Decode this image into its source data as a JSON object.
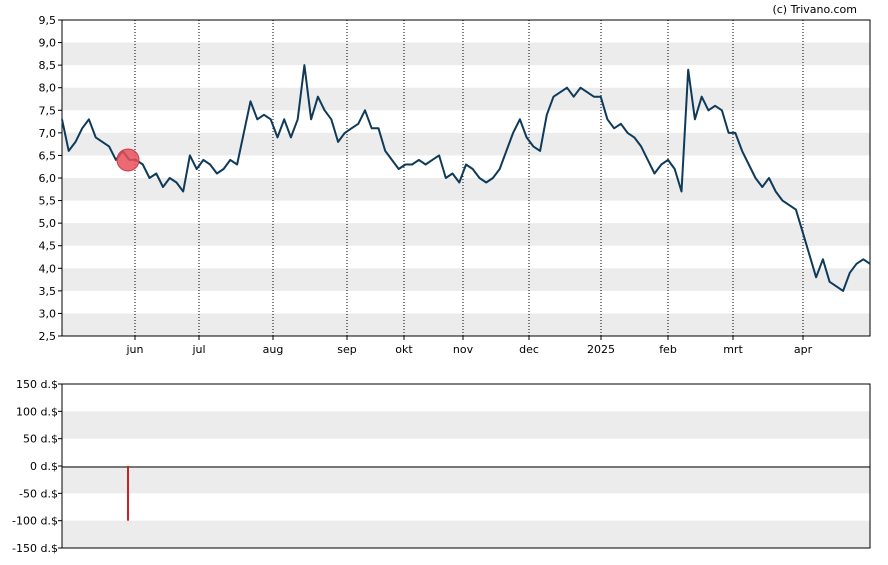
{
  "credit": "(c) Trivano.com",
  "chart_data": [
    {
      "type": "line",
      "ylim": [
        2.5,
        9.5
      ],
      "y_ticks": [
        "2,5",
        "3,0",
        "3,5",
        "4,0",
        "4,5",
        "5,0",
        "5,5",
        "6,0",
        "6,5",
        "7,0",
        "7,5",
        "8,0",
        "8,5",
        "9,0",
        "9,5"
      ],
      "x_labels": [
        "jun",
        "jul",
        "aug",
        "sep",
        "okt",
        "nov",
        "dec",
        "2025",
        "feb",
        "mrt",
        "apr"
      ],
      "grid": "alternating horizontal bands, dotted vertical month lines",
      "line_color": "#0f3a5a",
      "series": [
        {
          "values": [
            7.3,
            6.6,
            6.8,
            7.1,
            7.3,
            6.9,
            6.8,
            6.7,
            6.4,
            6.6,
            6.4,
            6.4,
            6.3,
            6.0,
            6.1,
            5.8,
            6.0,
            5.9,
            5.7,
            6.5,
            6.2,
            6.4,
            6.3,
            6.1,
            6.2,
            6.4,
            6.3,
            7.0,
            7.7,
            7.3,
            7.4,
            7.3,
            6.9,
            7.3,
            6.9,
            7.3,
            8.5,
            7.3,
            7.8,
            7.5,
            7.3,
            6.8,
            7.0,
            7.1,
            7.2,
            7.5,
            7.1,
            7.1,
            6.6,
            6.4,
            6.2,
            6.3,
            6.3,
            6.4,
            6.3,
            6.4,
            6.5,
            6.0,
            6.1,
            5.9,
            6.3,
            6.2,
            6.0,
            5.9,
            6.0,
            6.2,
            6.6,
            7.0,
            7.3,
            6.9,
            6.7,
            6.6,
            7.4,
            7.8,
            7.9,
            8.0,
            7.8,
            8.0,
            7.9,
            7.8,
            7.8,
            7.3,
            7.1,
            7.2,
            7.0,
            6.9,
            6.7,
            6.4,
            6.1,
            6.3,
            6.4,
            6.2,
            5.7,
            8.4,
            7.3,
            7.8,
            7.5,
            7.6,
            7.5,
            7.0,
            7.0,
            6.6,
            6.3,
            6.0,
            5.8,
            6.0,
            5.7,
            5.5,
            5.4,
            5.3,
            4.8,
            4.3,
            3.8,
            4.2,
            3.7,
            3.6,
            3.5,
            3.9,
            4.1,
            4.2,
            4.1
          ]
        }
      ],
      "marker": {
        "position": "start of jun",
        "value": 6.4,
        "color": "#e8505b"
      }
    },
    {
      "type": "bar",
      "ylim": [
        -150,
        150
      ],
      "y_ticks": [
        "150 d.$",
        "100 d.$",
        "50 d.$",
        "0 d.$",
        "-50 d.$",
        "-100 d.$",
        "-150 d.$"
      ],
      "bars": [
        {
          "position": "start of jun",
          "value": -100,
          "color": "#d11f26"
        }
      ]
    }
  ]
}
